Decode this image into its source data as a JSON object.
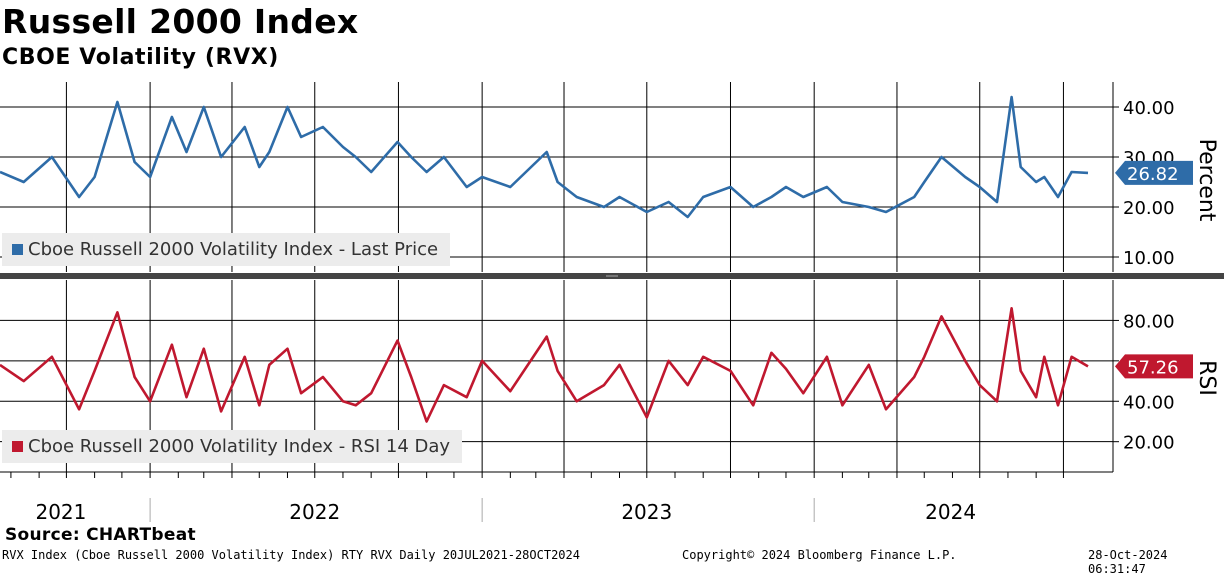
{
  "title": "Russell 2000 Index",
  "subtitle": "CBOE Volatility (RVX)",
  "source": "Source: CHARTbeat",
  "footer": {
    "left": "RVX Index (Cboe Russell 2000 Volatility Index) RTY RVX  Daily 20JUL2021-28OCT2024",
    "center": "Copyright© 2024 Bloomberg Finance L.P.",
    "right": "28-Oct-2024 06:31:47"
  },
  "colors": {
    "price": "#2e6ca8",
    "rsi": "#c0182f",
    "grid": "#000000",
    "divider": "#444444"
  },
  "chart_data": [
    {
      "type": "line",
      "title": "Cboe Russell 2000 Volatility Index - Last Price",
      "legend": "Cboe Russell 2000 Volatility Index - Last Price",
      "ylabel": "Percent",
      "ylim": [
        7,
        45
      ],
      "yticks": [
        "10.00",
        "20.00",
        "30.00",
        "40.00"
      ],
      "last_value": "26.82",
      "x": [
        "2021-07-20",
        "2021-08-15",
        "2021-09-15",
        "2021-10-15",
        "2021-11-01",
        "2021-11-26",
        "2021-12-15",
        "2022-01-01",
        "2022-01-25",
        "2022-02-10",
        "2022-03-01",
        "2022-03-20",
        "2022-04-15",
        "2022-05-01",
        "2022-05-12",
        "2022-06-01",
        "2022-06-16",
        "2022-07-10",
        "2022-08-01",
        "2022-08-15",
        "2022-09-01",
        "2022-09-30",
        "2022-10-15",
        "2022-11-01",
        "2022-11-20",
        "2022-12-15",
        "2023-01-01",
        "2023-02-01",
        "2023-03-13",
        "2023-03-25",
        "2023-04-15",
        "2023-05-15",
        "2023-06-01",
        "2023-07-01",
        "2023-07-25",
        "2023-08-15",
        "2023-09-01",
        "2023-10-01",
        "2023-10-26",
        "2023-11-15",
        "2023-12-01",
        "2023-12-20",
        "2024-01-15",
        "2024-02-01",
        "2024-03-01",
        "2024-03-20",
        "2024-04-20",
        "2024-05-01",
        "2024-05-20",
        "2024-06-15",
        "2024-07-01",
        "2024-07-20",
        "2024-08-05",
        "2024-08-15",
        "2024-09-01",
        "2024-09-10",
        "2024-09-25",
        "2024-10-10",
        "2024-10-28"
      ],
      "values": [
        27,
        25,
        30,
        22,
        26,
        41,
        29,
        26,
        38,
        31,
        40,
        30,
        36,
        28,
        31,
        40,
        34,
        36,
        32,
        30,
        27,
        33,
        30,
        27,
        30,
        24,
        26,
        24,
        31,
        25,
        22,
        20,
        22,
        19,
        21,
        18,
        22,
        24,
        20,
        22,
        24,
        22,
        24,
        21,
        20,
        19,
        22,
        25,
        30,
        26,
        24,
        21,
        42,
        28,
        25,
        26,
        22,
        27,
        26.82
      ]
    },
    {
      "type": "line",
      "title": "Cboe Russell 2000 Volatility Index - RSI 14 Day",
      "legend": "Cboe Russell 2000 Volatility Index - RSI 14 Day",
      "ylabel": "RSI",
      "ylim": [
        5,
        100
      ],
      "yticks": [
        "20.00",
        "40.00",
        "60.00",
        "80.00"
      ],
      "last_value": "57.26",
      "x": [
        "2021-07-20",
        "2021-08-15",
        "2021-09-15",
        "2021-10-15",
        "2021-11-01",
        "2021-11-26",
        "2021-12-15",
        "2022-01-01",
        "2022-01-25",
        "2022-02-10",
        "2022-03-01",
        "2022-03-20",
        "2022-04-15",
        "2022-05-01",
        "2022-05-12",
        "2022-06-01",
        "2022-06-16",
        "2022-07-10",
        "2022-08-01",
        "2022-08-15",
        "2022-09-01",
        "2022-09-30",
        "2022-10-15",
        "2022-11-01",
        "2022-11-20",
        "2022-12-15",
        "2023-01-01",
        "2023-02-01",
        "2023-03-13",
        "2023-03-25",
        "2023-04-15",
        "2023-05-15",
        "2023-06-01",
        "2023-07-01",
        "2023-07-25",
        "2023-08-15",
        "2023-09-01",
        "2023-10-01",
        "2023-10-26",
        "2023-11-15",
        "2023-12-01",
        "2023-12-20",
        "2024-01-15",
        "2024-02-01",
        "2024-03-01",
        "2024-03-20",
        "2024-04-20",
        "2024-05-01",
        "2024-05-20",
        "2024-06-15",
        "2024-07-01",
        "2024-07-20",
        "2024-08-05",
        "2024-08-15",
        "2024-09-01",
        "2024-09-10",
        "2024-09-25",
        "2024-10-10",
        "2024-10-28"
      ],
      "values": [
        58,
        50,
        62,
        36,
        55,
        84,
        52,
        40,
        68,
        42,
        66,
        35,
        62,
        38,
        58,
        66,
        44,
        52,
        40,
        38,
        44,
        70,
        52,
        30,
        48,
        42,
        60,
        45,
        72,
        55,
        40,
        48,
        58,
        32,
        60,
        48,
        62,
        55,
        38,
        64,
        56,
        44,
        62,
        38,
        58,
        36,
        52,
        62,
        82,
        60,
        48,
        40,
        86,
        55,
        42,
        62,
        38,
        62,
        57.26
      ]
    }
  ],
  "x_axis": {
    "years": [
      "2021",
      "2022",
      "2023",
      "2024"
    ]
  }
}
